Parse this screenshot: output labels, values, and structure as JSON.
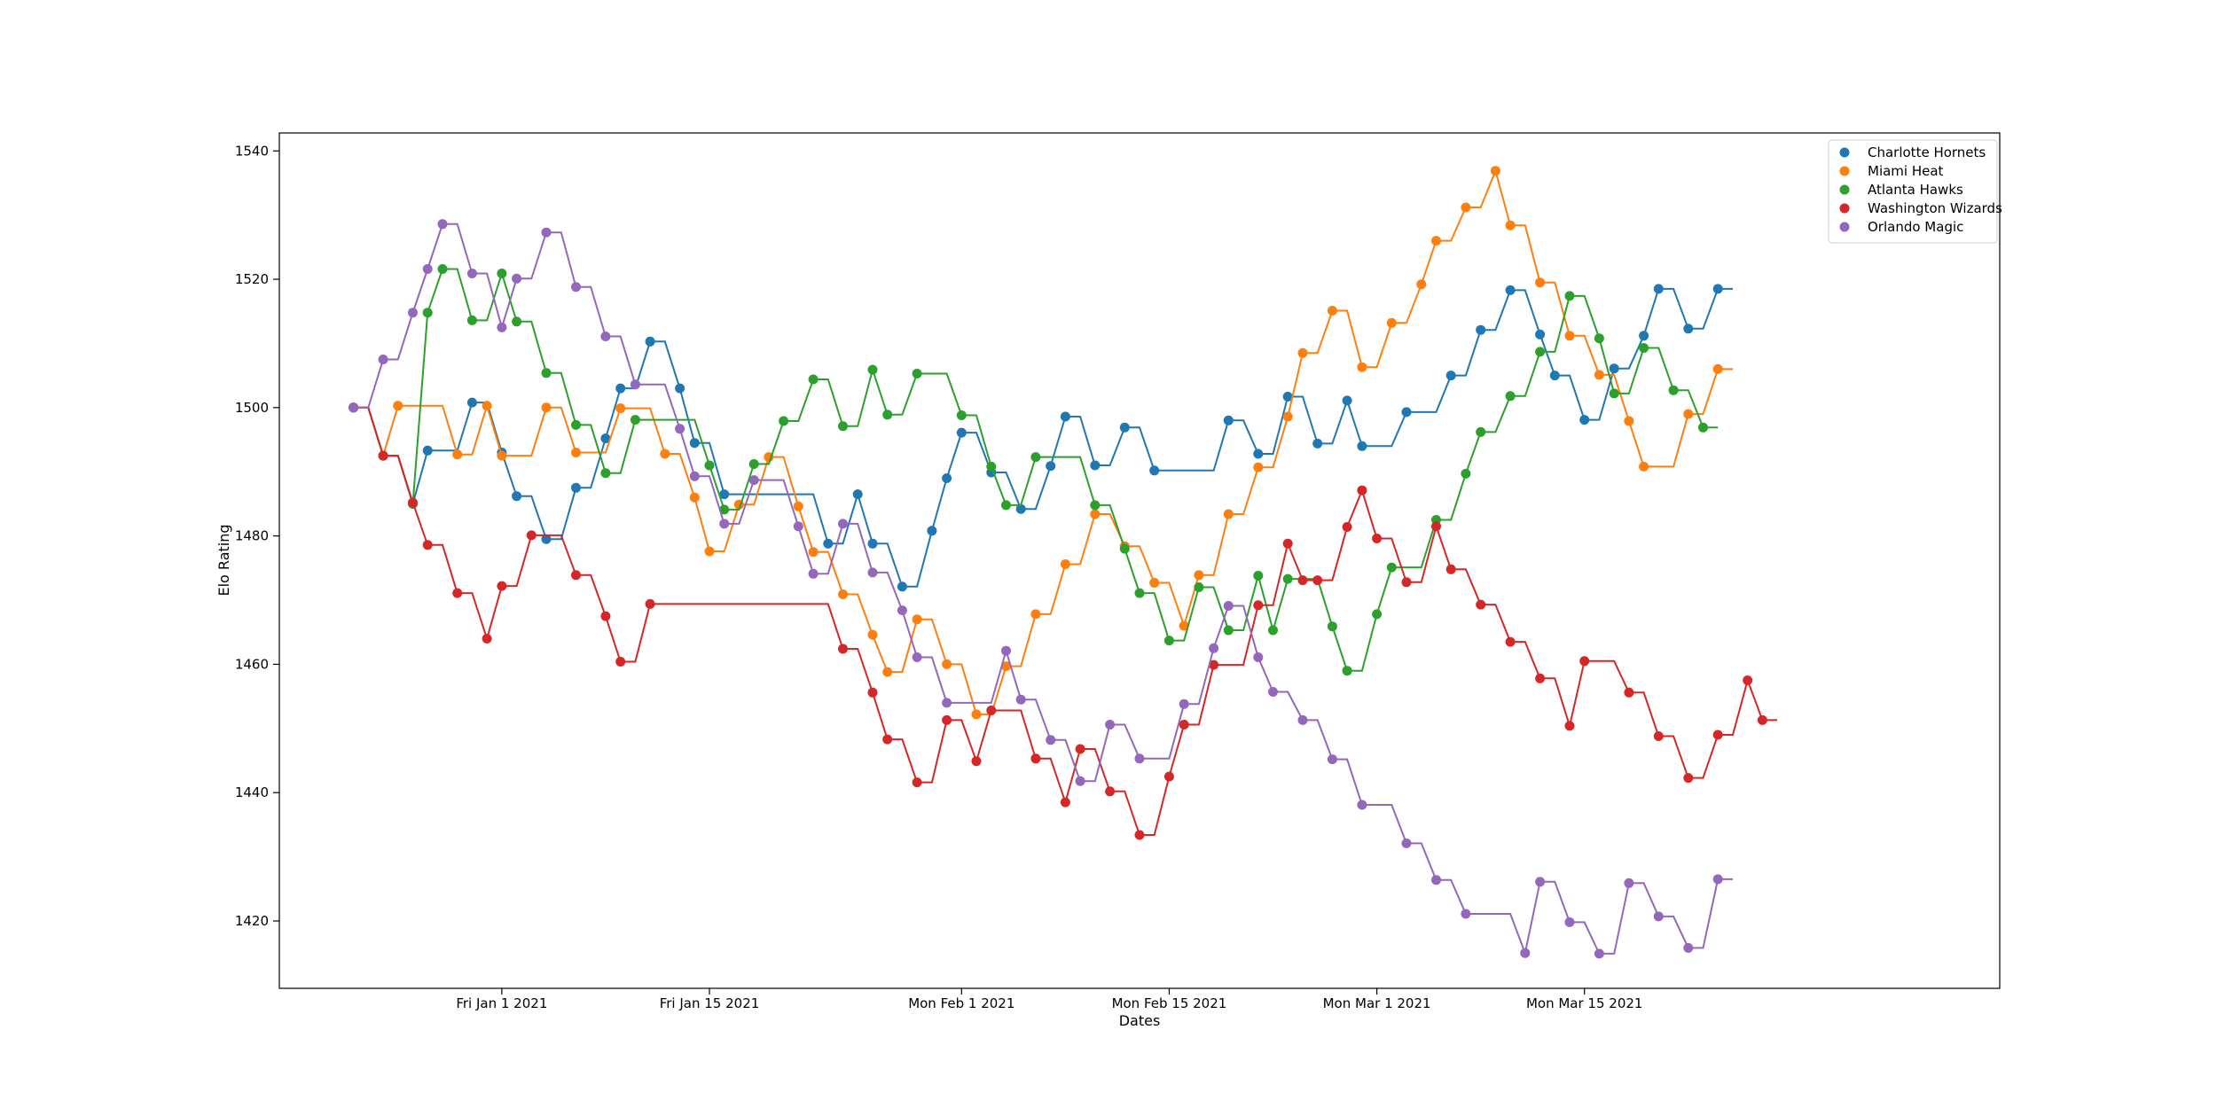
{
  "chart_data": {
    "type": "line",
    "title": "",
    "xlabel": "Dates",
    "ylabel": "Elo Rating",
    "x_start": "2020-12-22",
    "x_step_days": 1,
    "y_ticks": [
      1420,
      1440,
      1460,
      1480,
      1500,
      1520,
      1540
    ],
    "x_ticks": [
      {
        "date": "2021-01-01",
        "label": "Fri Jan 1 2021"
      },
      {
        "date": "2021-01-15",
        "label": "Fri Jan 15 2021"
      },
      {
        "date": "2021-02-01",
        "label": "Mon Feb 1 2021"
      },
      {
        "date": "2021-02-15",
        "label": "Mon Feb 15 2021"
      },
      {
        "date": "2021-03-01",
        "label": "Mon Mar 1 2021"
      },
      {
        "date": "2021-03-15",
        "label": "Mon Mar 15 2021"
      }
    ],
    "xlim": [
      "2020-12-17",
      "2021-04-12"
    ],
    "ylim": [
      1409.5,
      1542.8
    ],
    "legend_position": "top-right",
    "grid": false,
    "series": [
      {
        "name": "Charlotte Hornets",
        "color": "#1f77b4",
        "points": [
          [
            "2020-12-22",
            1500
          ],
          [
            "2020-12-24",
            1492.5
          ],
          [
            "2020-12-26",
            1485
          ],
          [
            "2020-12-27",
            1493.3
          ],
          [
            "2020-12-30",
            1500.8
          ],
          [
            "2021-01-01",
            1493
          ],
          [
            "2021-01-02",
            1486.2
          ],
          [
            "2021-01-04",
            1479.5
          ],
          [
            "2021-01-06",
            1487.5
          ],
          [
            "2021-01-08",
            1495.2
          ],
          [
            "2021-01-09",
            1503
          ],
          [
            "2021-01-11",
            1510.3
          ],
          [
            "2021-01-13",
            1503
          ],
          [
            "2021-01-14",
            1494.5
          ],
          [
            "2021-01-16",
            1486.5
          ],
          [
            "2021-01-23",
            1478.8
          ],
          [
            "2021-01-25",
            1486.5
          ],
          [
            "2021-01-26",
            1478.8
          ],
          [
            "2021-01-28",
            1472.1
          ],
          [
            "2021-01-30",
            1480.8
          ],
          [
            "2021-01-31",
            1489
          ],
          [
            "2021-02-01",
            1496.1
          ],
          [
            "2021-02-03",
            1489.9
          ],
          [
            "2021-02-05",
            1484.2
          ],
          [
            "2021-02-07",
            1490.9
          ],
          [
            "2021-02-08",
            1498.6
          ],
          [
            "2021-02-10",
            1491
          ],
          [
            "2021-02-12",
            1496.9
          ],
          [
            "2021-02-14",
            1490.2
          ],
          [
            "2021-02-19",
            1498
          ],
          [
            "2021-02-21",
            1492.8
          ],
          [
            "2021-02-23",
            1501.7
          ],
          [
            "2021-02-25",
            1494.4
          ],
          [
            "2021-02-27",
            1501.1
          ],
          [
            "2021-02-28",
            1494
          ],
          [
            "2021-03-03",
            1499.3
          ],
          [
            "2021-03-06",
            1505
          ],
          [
            "2021-03-08",
            1512.1
          ],
          [
            "2021-03-10",
            1518.3
          ],
          [
            "2021-03-12",
            1511.4
          ],
          [
            "2021-03-13",
            1505
          ],
          [
            "2021-03-15",
            1498.1
          ],
          [
            "2021-03-17",
            1506.1
          ],
          [
            "2021-03-19",
            1511.2
          ],
          [
            "2021-03-20",
            1518.5
          ],
          [
            "2021-03-22",
            1512.3
          ],
          [
            "2021-03-24",
            1518.5
          ]
        ]
      },
      {
        "name": "Miami Heat",
        "color": "#ff7f0e",
        "points": [
          [
            "2020-12-22",
            1500
          ],
          [
            "2020-12-24",
            1492.5
          ],
          [
            "2020-12-25",
            1500.3
          ],
          [
            "2020-12-29",
            1492.7
          ],
          [
            "2020-12-31",
            1500.3
          ],
          [
            "2021-01-01",
            1492.5
          ],
          [
            "2021-01-04",
            1500
          ],
          [
            "2021-01-06",
            1493
          ],
          [
            "2021-01-09",
            1499.9
          ],
          [
            "2021-01-12",
            1492.8
          ],
          [
            "2021-01-14",
            1486
          ],
          [
            "2021-01-15",
            1477.6
          ],
          [
            "2021-01-17",
            1484.9
          ],
          [
            "2021-01-19",
            1492.3
          ],
          [
            "2021-01-21",
            1484.6
          ],
          [
            "2021-01-22",
            1477.5
          ],
          [
            "2021-01-24",
            1470.9
          ],
          [
            "2021-01-26",
            1464.6
          ],
          [
            "2021-01-27",
            1458.8
          ],
          [
            "2021-01-29",
            1467
          ],
          [
            "2021-01-31",
            1460
          ],
          [
            "2021-02-02",
            1452.2
          ],
          [
            "2021-02-04",
            1459.7
          ],
          [
            "2021-02-06",
            1467.8
          ],
          [
            "2021-02-08",
            1475.6
          ],
          [
            "2021-02-10",
            1483.4
          ],
          [
            "2021-02-12",
            1478.4
          ],
          [
            "2021-02-14",
            1472.7
          ],
          [
            "2021-02-16",
            1466
          ],
          [
            "2021-02-17",
            1473.9
          ],
          [
            "2021-02-19",
            1483.4
          ],
          [
            "2021-02-21",
            1490.7
          ],
          [
            "2021-02-23",
            1498.6
          ],
          [
            "2021-02-24",
            1508.5
          ],
          [
            "2021-02-26",
            1515.1
          ],
          [
            "2021-02-28",
            1506.3
          ],
          [
            "2021-03-02",
            1513.2
          ],
          [
            "2021-03-04",
            1519.2
          ],
          [
            "2021-03-05",
            1526
          ],
          [
            "2021-03-07",
            1531.2
          ],
          [
            "2021-03-09",
            1536.9
          ],
          [
            "2021-03-10",
            1528.4
          ],
          [
            "2021-03-12",
            1519.5
          ],
          [
            "2021-03-14",
            1511.2
          ],
          [
            "2021-03-16",
            1505.1
          ],
          [
            "2021-03-18",
            1497.9
          ],
          [
            "2021-03-19",
            1490.8
          ],
          [
            "2021-03-22",
            1499
          ],
          [
            "2021-03-24",
            1506
          ]
        ]
      },
      {
        "name": "Atlanta Hawks",
        "color": "#2ca02c",
        "points": [
          [
            "2020-12-22",
            1500
          ],
          [
            "2020-12-24",
            1492.5
          ],
          [
            "2020-12-26",
            1485
          ],
          [
            "2020-12-27",
            1514.8
          ],
          [
            "2020-12-28",
            1521.6
          ],
          [
            "2020-12-30",
            1513.6
          ],
          [
            "2021-01-01",
            1520.9
          ],
          [
            "2021-01-02",
            1513.4
          ],
          [
            "2021-01-04",
            1505.4
          ],
          [
            "2021-01-06",
            1497.3
          ],
          [
            "2021-01-08",
            1489.8
          ],
          [
            "2021-01-10",
            1498.1
          ],
          [
            "2021-01-15",
            1491
          ],
          [
            "2021-01-16",
            1484.1
          ],
          [
            "2021-01-18",
            1491.2
          ],
          [
            "2021-01-20",
            1497.9
          ],
          [
            "2021-01-22",
            1504.4
          ],
          [
            "2021-01-24",
            1497.1
          ],
          [
            "2021-01-26",
            1505.9
          ],
          [
            "2021-01-27",
            1498.9
          ],
          [
            "2021-01-29",
            1505.3
          ],
          [
            "2021-02-01",
            1498.8
          ],
          [
            "2021-02-03",
            1490.8
          ],
          [
            "2021-02-04",
            1484.8
          ],
          [
            "2021-02-06",
            1492.3
          ],
          [
            "2021-02-10",
            1484.8
          ],
          [
            "2021-02-12",
            1478
          ],
          [
            "2021-02-13",
            1471.1
          ],
          [
            "2021-02-15",
            1463.7
          ],
          [
            "2021-02-17",
            1472
          ],
          [
            "2021-02-19",
            1465.3
          ],
          [
            "2021-02-21",
            1473.8
          ],
          [
            "2021-02-22",
            1465.3
          ],
          [
            "2021-02-23",
            1473.3
          ],
          [
            "2021-02-26",
            1465.9
          ],
          [
            "2021-02-27",
            1459
          ],
          [
            "2021-03-01",
            1467.8
          ],
          [
            "2021-03-02",
            1475.1
          ],
          [
            "2021-03-05",
            1482.5
          ],
          [
            "2021-03-07",
            1489.7
          ],
          [
            "2021-03-08",
            1496.2
          ],
          [
            "2021-03-10",
            1501.8
          ],
          [
            "2021-03-12",
            1508.7
          ],
          [
            "2021-03-14",
            1517.4
          ],
          [
            "2021-03-16",
            1510.8
          ],
          [
            "2021-03-17",
            1502.2
          ],
          [
            "2021-03-19",
            1509.3
          ],
          [
            "2021-03-21",
            1502.7
          ],
          [
            "2021-03-23",
            1496.9
          ]
        ]
      },
      {
        "name": "Washington Wizards",
        "color": "#d62728",
        "points": [
          [
            "2020-12-22",
            1500
          ],
          [
            "2020-12-24",
            1492.5
          ],
          [
            "2020-12-26",
            1485.2
          ],
          [
            "2020-12-27",
            1478.6
          ],
          [
            "2020-12-29",
            1471.1
          ],
          [
            "2020-12-31",
            1464
          ],
          [
            "2021-01-01",
            1472.2
          ],
          [
            "2021-01-03",
            1480.1
          ],
          [
            "2021-01-06",
            1473.9
          ],
          [
            "2021-01-08",
            1467.5
          ],
          [
            "2021-01-09",
            1460.4
          ],
          [
            "2021-01-11",
            1469.4
          ],
          [
            "2021-01-24",
            1462.4
          ],
          [
            "2021-01-26",
            1455.6
          ],
          [
            "2021-01-27",
            1448.3
          ],
          [
            "2021-01-29",
            1441.6
          ],
          [
            "2021-01-31",
            1451.3
          ],
          [
            "2021-02-02",
            1444.9
          ],
          [
            "2021-02-03",
            1452.8
          ],
          [
            "2021-02-06",
            1445.3
          ],
          [
            "2021-02-08",
            1438.5
          ],
          [
            "2021-02-09",
            1446.8
          ],
          [
            "2021-02-11",
            1440.2
          ],
          [
            "2021-02-13",
            1433.4
          ],
          [
            "2021-02-15",
            1442.5
          ],
          [
            "2021-02-16",
            1450.6
          ],
          [
            "2021-02-18",
            1459.9
          ],
          [
            "2021-02-21",
            1469.2
          ],
          [
            "2021-02-23",
            1478.8
          ],
          [
            "2021-02-24",
            1473.1
          ],
          [
            "2021-02-25",
            1473.1
          ],
          [
            "2021-02-27",
            1481.4
          ],
          [
            "2021-02-28",
            1487.1
          ],
          [
            "2021-03-01",
            1479.6
          ],
          [
            "2021-03-03",
            1472.8
          ],
          [
            "2021-03-05",
            1481.5
          ],
          [
            "2021-03-06",
            1474.8
          ],
          [
            "2021-03-08",
            1469.3
          ],
          [
            "2021-03-10",
            1463.5
          ],
          [
            "2021-03-12",
            1457.8
          ],
          [
            "2021-03-14",
            1450.4
          ],
          [
            "2021-03-15",
            1460.5
          ],
          [
            "2021-03-18",
            1455.6
          ],
          [
            "2021-03-20",
            1448.8
          ],
          [
            "2021-03-22",
            1442.3
          ],
          [
            "2021-03-24",
            1449
          ],
          [
            "2021-03-26",
            1457.5
          ],
          [
            "2021-03-27",
            1451.3
          ]
        ]
      },
      {
        "name": "Orlando Magic",
        "color": "#9467bd",
        "points": [
          [
            "2020-12-22",
            1500
          ],
          [
            "2020-12-24",
            1507.5
          ],
          [
            "2020-12-26",
            1514.8
          ],
          [
            "2020-12-27",
            1521.6
          ],
          [
            "2020-12-28",
            1528.6
          ],
          [
            "2020-12-30",
            1520.9
          ],
          [
            "2021-01-01",
            1512.5
          ],
          [
            "2021-01-02",
            1520.1
          ],
          [
            "2021-01-04",
            1527.3
          ],
          [
            "2021-01-06",
            1518.8
          ],
          [
            "2021-01-08",
            1511.1
          ],
          [
            "2021-01-10",
            1503.6
          ],
          [
            "2021-01-13",
            1496.7
          ],
          [
            "2021-01-14",
            1489.3
          ],
          [
            "2021-01-16",
            1481.9
          ],
          [
            "2021-01-18",
            1488.7
          ],
          [
            "2021-01-21",
            1481.5
          ],
          [
            "2021-01-22",
            1474.1
          ],
          [
            "2021-01-24",
            1481.9
          ],
          [
            "2021-01-26",
            1474.3
          ],
          [
            "2021-01-28",
            1468.4
          ],
          [
            "2021-01-29",
            1461.1
          ],
          [
            "2021-01-31",
            1454
          ],
          [
            "2021-02-04",
            1462.1
          ],
          [
            "2021-02-05",
            1454.5
          ],
          [
            "2021-02-07",
            1448.2
          ],
          [
            "2021-02-09",
            1441.8
          ],
          [
            "2021-02-11",
            1450.6
          ],
          [
            "2021-02-13",
            1445.3
          ],
          [
            "2021-02-16",
            1453.8
          ],
          [
            "2021-02-18",
            1462.5
          ],
          [
            "2021-02-19",
            1469.1
          ],
          [
            "2021-02-21",
            1461.1
          ],
          [
            "2021-02-22",
            1455.7
          ],
          [
            "2021-02-24",
            1451.3
          ],
          [
            "2021-02-26",
            1445.2
          ],
          [
            "2021-02-28",
            1438.1
          ],
          [
            "2021-03-03",
            1432.1
          ],
          [
            "2021-03-05",
            1426.4
          ],
          [
            "2021-03-07",
            1421.1
          ],
          [
            "2021-03-11",
            1415
          ],
          [
            "2021-03-12",
            1426.1
          ],
          [
            "2021-03-14",
            1419.8
          ],
          [
            "2021-03-16",
            1414.9
          ],
          [
            "2021-03-18",
            1425.9
          ],
          [
            "2021-03-20",
            1420.7
          ],
          [
            "2021-03-22",
            1415.8
          ],
          [
            "2021-03-24",
            1426.5
          ]
        ]
      }
    ]
  }
}
